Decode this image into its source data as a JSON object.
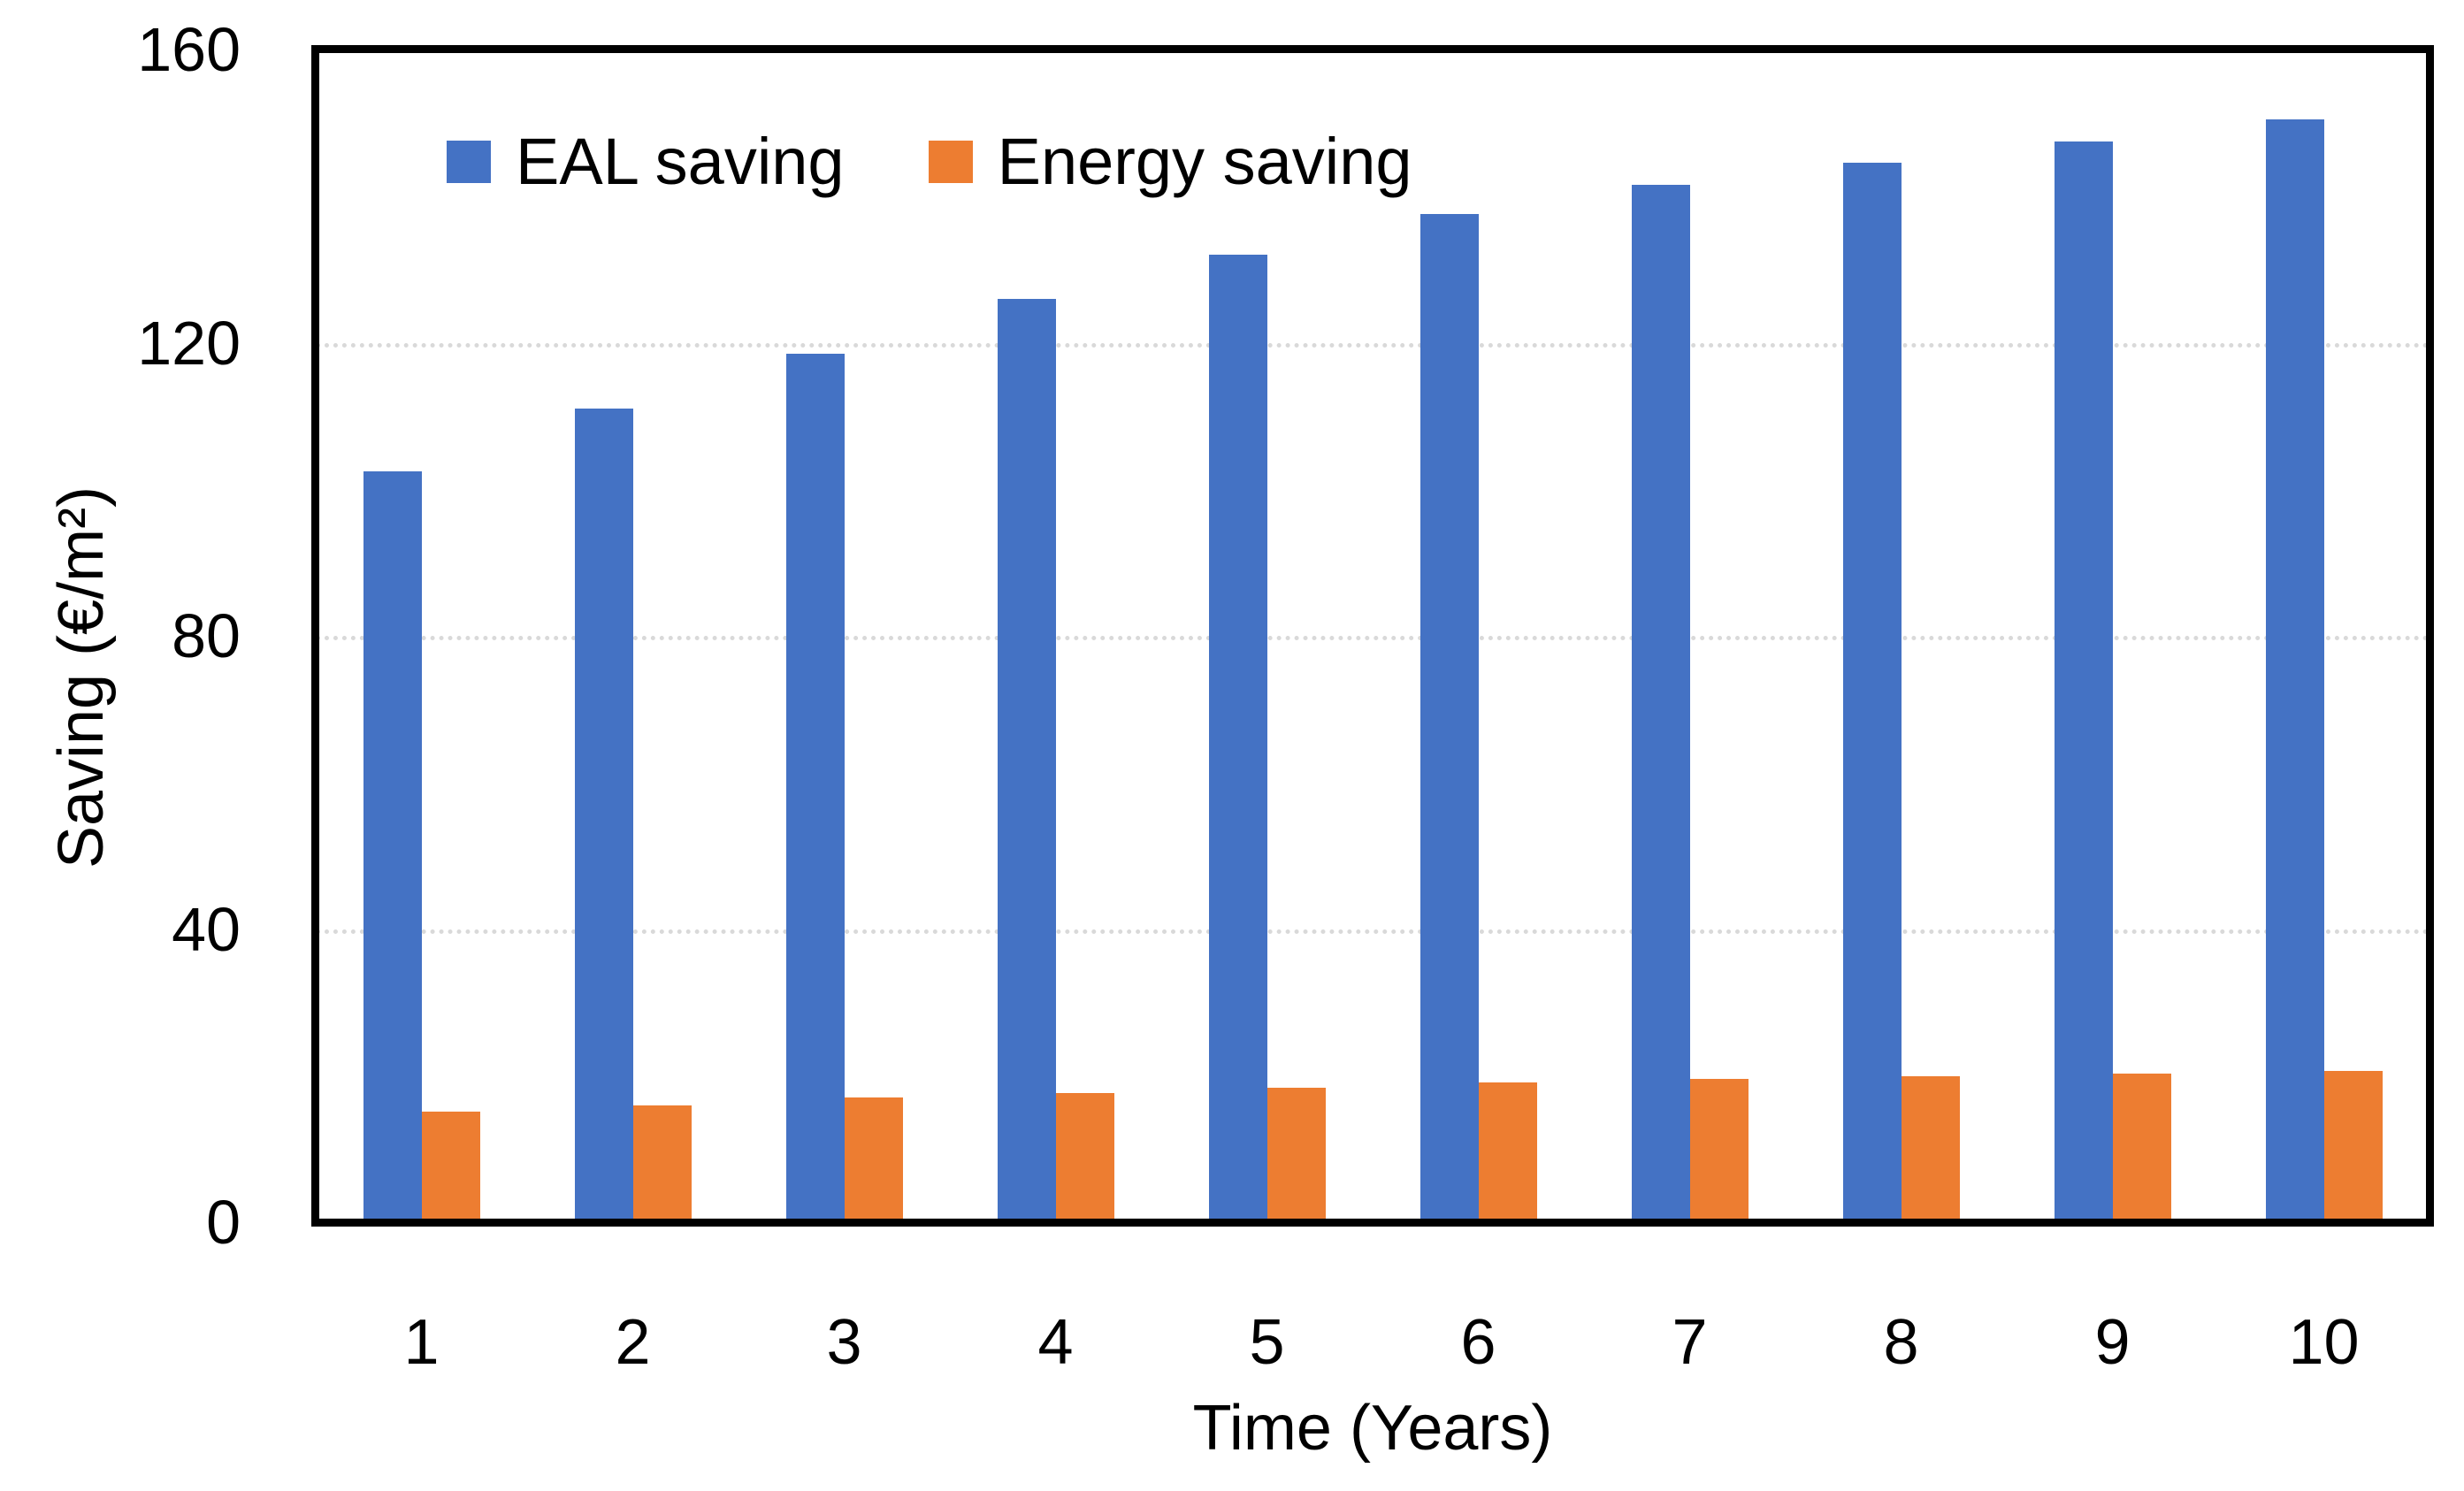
{
  "chart_data": {
    "type": "bar",
    "title": "",
    "xlabel": "Time (Years)",
    "ylabel": "Saving (€/m²)",
    "categories": [
      "1",
      "2",
      "3",
      "4",
      "5",
      "6",
      "7",
      "8",
      "9",
      "10"
    ],
    "series": [
      {
        "name": "EAL saving",
        "color": "#4472C4",
        "values": [
          102.5,
          111,
          118.5,
          126,
          132,
          137.5,
          141.5,
          144.5,
          147.5,
          150.5
        ]
      },
      {
        "name": "Energy saving",
        "color": "#ED7D31",
        "values": [
          15.1,
          15.9,
          17,
          17.6,
          18.3,
          19.1,
          19.5,
          19.9,
          20.3,
          20.6
        ]
      }
    ],
    "ylim": [
      0,
      160
    ],
    "yticks": [
      0,
      40,
      80,
      120,
      160
    ],
    "grid": "horizontal-dotted",
    "gridline_color": "#D9D9D9",
    "axis_color": "#000000",
    "legend_position": "top-inside-left"
  }
}
